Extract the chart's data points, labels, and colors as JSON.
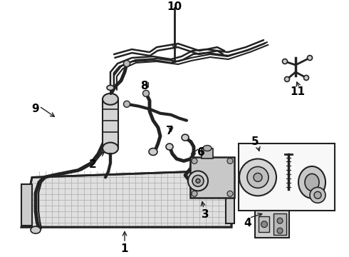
{
  "background_color": "#ffffff",
  "line_color": "#222222",
  "text_color": "#000000",
  "figsize": [
    4.9,
    3.6
  ],
  "dpi": 100,
  "xlim": [
    0,
    490
  ],
  "ylim": [
    0,
    360
  ]
}
